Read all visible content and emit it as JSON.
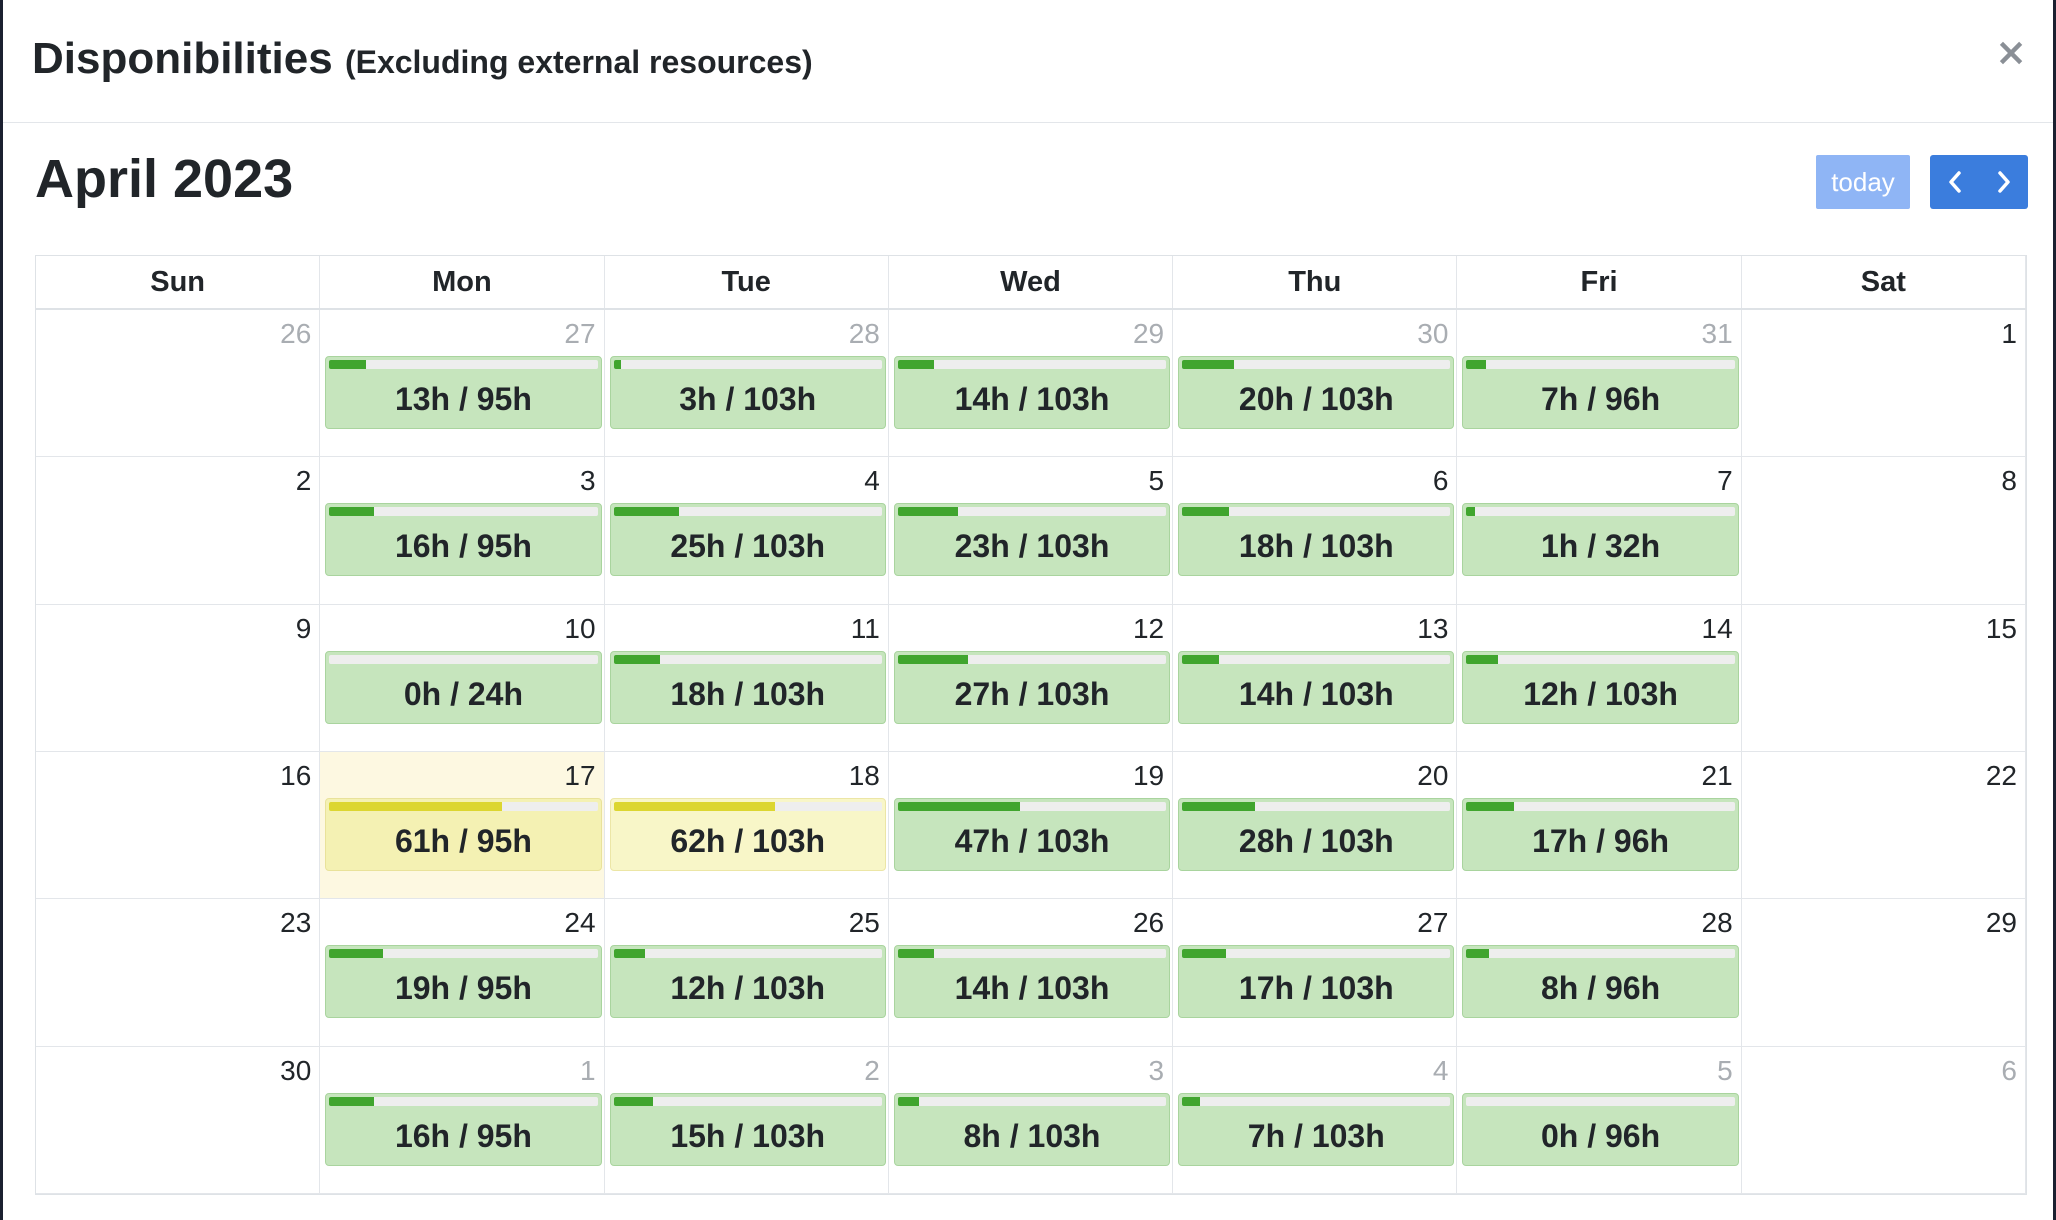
{
  "modal": {
    "title": "Disponibilities",
    "subtitle": "(Excluding external resources)",
    "close_symbol": "×"
  },
  "calendar": {
    "title": "April 2023",
    "today_label": "today",
    "prev_icon": "chevron-left-icon",
    "next_icon": "chevron-right-icon",
    "day_headers": [
      "Sun",
      "Mon",
      "Tue",
      "Wed",
      "Thu",
      "Fri",
      "Sat"
    ],
    "colors": {
      "fill_normal": "#40a52e",
      "fill_warning": "#dcd630",
      "event_normal_bg": "#c6e5bd",
      "event_warning_bg": "#f4f1b3",
      "today_bg": "#fdf8e1",
      "nav_button": "#3b7ddd",
      "today_button": "#8fb5f5"
    },
    "weeks": [
      [
        {
          "day": "26",
          "other_month": true
        },
        {
          "day": "27",
          "other_month": true,
          "event": {
            "label": "13h / 95h",
            "used": 13,
            "capacity": 95
          }
        },
        {
          "day": "28",
          "other_month": true,
          "event": {
            "label": "3h / 103h",
            "used": 3,
            "capacity": 103
          }
        },
        {
          "day": "29",
          "other_month": true,
          "event": {
            "label": "14h / 103h",
            "used": 14,
            "capacity": 103
          }
        },
        {
          "day": "30",
          "other_month": true,
          "event": {
            "label": "20h / 103h",
            "used": 20,
            "capacity": 103
          }
        },
        {
          "day": "31",
          "other_month": true,
          "event": {
            "label": "7h / 96h",
            "used": 7,
            "capacity": 96
          }
        },
        {
          "day": "1",
          "other_month": false
        }
      ],
      [
        {
          "day": "2",
          "other_month": false
        },
        {
          "day": "3",
          "other_month": false,
          "event": {
            "label": "16h / 95h",
            "used": 16,
            "capacity": 95
          }
        },
        {
          "day": "4",
          "other_month": false,
          "event": {
            "label": "25h / 103h",
            "used": 25,
            "capacity": 103
          }
        },
        {
          "day": "5",
          "other_month": false,
          "event": {
            "label": "23h / 103h",
            "used": 23,
            "capacity": 103
          }
        },
        {
          "day": "6",
          "other_month": false,
          "event": {
            "label": "18h / 103h",
            "used": 18,
            "capacity": 103
          }
        },
        {
          "day": "7",
          "other_month": false,
          "event": {
            "label": "1h / 32h",
            "used": 1,
            "capacity": 32
          }
        },
        {
          "day": "8",
          "other_month": false
        }
      ],
      [
        {
          "day": "9",
          "other_month": false
        },
        {
          "day": "10",
          "other_month": false,
          "event": {
            "label": "0h / 24h",
            "used": 0,
            "capacity": 24
          }
        },
        {
          "day": "11",
          "other_month": false,
          "event": {
            "label": "18h / 103h",
            "used": 18,
            "capacity": 103
          }
        },
        {
          "day": "12",
          "other_month": false,
          "event": {
            "label": "27h / 103h",
            "used": 27,
            "capacity": 103
          }
        },
        {
          "day": "13",
          "other_month": false,
          "event": {
            "label": "14h / 103h",
            "used": 14,
            "capacity": 103
          }
        },
        {
          "day": "14",
          "other_month": false,
          "event": {
            "label": "12h / 103h",
            "used": 12,
            "capacity": 103
          }
        },
        {
          "day": "15",
          "other_month": false
        }
      ],
      [
        {
          "day": "16",
          "other_month": false
        },
        {
          "day": "17",
          "other_month": false,
          "today": true,
          "event": {
            "label": "61h / 95h",
            "used": 61,
            "capacity": 95,
            "status": "warning"
          }
        },
        {
          "day": "18",
          "other_month": false,
          "event": {
            "label": "62h / 103h",
            "used": 62,
            "capacity": 103,
            "status": "warning"
          }
        },
        {
          "day": "19",
          "other_month": false,
          "event": {
            "label": "47h / 103h",
            "used": 47,
            "capacity": 103
          }
        },
        {
          "day": "20",
          "other_month": false,
          "event": {
            "label": "28h / 103h",
            "used": 28,
            "capacity": 103
          }
        },
        {
          "day": "21",
          "other_month": false,
          "event": {
            "label": "17h / 96h",
            "used": 17,
            "capacity": 96
          }
        },
        {
          "day": "22",
          "other_month": false
        }
      ],
      [
        {
          "day": "23",
          "other_month": false
        },
        {
          "day": "24",
          "other_month": false,
          "event": {
            "label": "19h / 95h",
            "used": 19,
            "capacity": 95
          }
        },
        {
          "day": "25",
          "other_month": false,
          "event": {
            "label": "12h / 103h",
            "used": 12,
            "capacity": 103
          }
        },
        {
          "day": "26",
          "other_month": false,
          "event": {
            "label": "14h / 103h",
            "used": 14,
            "capacity": 103
          }
        },
        {
          "day": "27",
          "other_month": false,
          "event": {
            "label": "17h / 103h",
            "used": 17,
            "capacity": 103
          }
        },
        {
          "day": "28",
          "other_month": false,
          "event": {
            "label": "8h / 96h",
            "used": 8,
            "capacity": 96
          }
        },
        {
          "day": "29",
          "other_month": false
        }
      ],
      [
        {
          "day": "30",
          "other_month": false
        },
        {
          "day": "1",
          "other_month": true,
          "event": {
            "label": "16h / 95h",
            "used": 16,
            "capacity": 95
          }
        },
        {
          "day": "2",
          "other_month": true,
          "event": {
            "label": "15h / 103h",
            "used": 15,
            "capacity": 103
          }
        },
        {
          "day": "3",
          "other_month": true,
          "event": {
            "label": "8h / 103h",
            "used": 8,
            "capacity": 103
          }
        },
        {
          "day": "4",
          "other_month": true,
          "event": {
            "label": "7h / 103h",
            "used": 7,
            "capacity": 103
          }
        },
        {
          "day": "5",
          "other_month": true,
          "event": {
            "label": "0h / 96h",
            "used": 0,
            "capacity": 96
          }
        },
        {
          "day": "6",
          "other_month": true
        }
      ]
    ]
  }
}
